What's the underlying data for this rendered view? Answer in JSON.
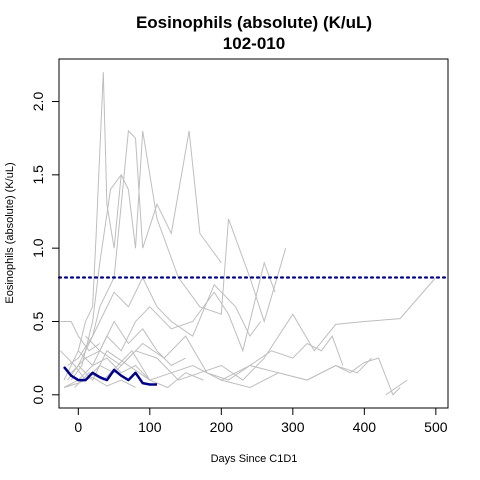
{
  "chart_data": {
    "type": "line",
    "title": "Eosinophils (absolute) (K/uL)",
    "subtitle": "102-010",
    "xlabel": "Days Since C1D1",
    "ylabel": "Eosinophils (absolute) (K/uL)",
    "xlim": [
      -27,
      517
    ],
    "ylim": [
      -0.09,
      2.29
    ],
    "x_ticks": [
      0,
      100,
      200,
      300,
      400,
      500
    ],
    "y_ticks": [
      0.0,
      0.5,
      1.0,
      1.5,
      2.0
    ],
    "x_tick_labels": [
      "0",
      "100",
      "200",
      "300",
      "400",
      "500"
    ],
    "y_tick_labels": [
      "0.0",
      "0.5",
      "1.0",
      "1.5",
      "2.0"
    ],
    "reference_line": {
      "y": 0.8,
      "style": "dotted",
      "color": "#00008b"
    },
    "highlight_color": "#00008b",
    "background_color": "#bebebe",
    "highlight_series": {
      "x": [
        -20,
        -10,
        0,
        10,
        20,
        30,
        40,
        50,
        60,
        70,
        80,
        90,
        100,
        110
      ],
      "y": [
        0.19,
        0.13,
        0.1,
        0.1,
        0.15,
        0.12,
        0.1,
        0.17,
        0.13,
        0.1,
        0.15,
        0.08,
        0.07,
        0.07
      ]
    },
    "background_series": [
      {
        "x": [
          -25,
          -10,
          0,
          15,
          30
        ],
        "y": [
          0.5,
          0.5,
          0.4,
          0.3,
          0.35
        ]
      },
      {
        "x": [
          -20,
          0,
          10,
          20,
          25,
          35,
          40,
          50,
          60
        ],
        "y": [
          0.1,
          0.3,
          0.5,
          0.6,
          1.1,
          2.2,
          1.3,
          1.0,
          1.5
        ]
      },
      {
        "x": [
          -15,
          0,
          20,
          30,
          50,
          70,
          80,
          90,
          110,
          130,
          155,
          170,
          200
        ],
        "y": [
          0.2,
          0.25,
          0.4,
          0.6,
          0.8,
          1.8,
          1.75,
          1.0,
          1.3,
          1.1,
          1.8,
          1.1,
          0.9
        ]
      },
      {
        "x": [
          -10,
          5,
          20,
          30,
          45,
          60,
          70,
          80,
          90,
          110,
          140,
          170,
          200,
          210,
          240,
          260,
          290
        ],
        "y": [
          0.1,
          0.2,
          0.5,
          0.9,
          1.4,
          1.5,
          1.4,
          1.0,
          1.8,
          1.2,
          0.8,
          0.6,
          0.55,
          1.2,
          0.8,
          0.5,
          1.0
        ]
      },
      {
        "x": [
          -15,
          0,
          15,
          30,
          50,
          70,
          90,
          110,
          130,
          160,
          190,
          220,
          240,
          255
        ],
        "y": [
          0.1,
          0.2,
          0.35,
          0.5,
          0.7,
          0.6,
          0.8,
          0.6,
          0.5,
          0.4,
          0.75,
          0.6,
          0.4,
          0.5
        ]
      },
      {
        "x": [
          -20,
          0,
          20,
          40,
          60,
          80,
          100,
          130,
          160,
          190,
          210,
          230,
          260,
          275
        ],
        "y": [
          0.05,
          0.1,
          0.2,
          0.4,
          0.3,
          0.5,
          0.6,
          0.45,
          0.5,
          0.7,
          0.55,
          0.3,
          0.9,
          0.7
        ]
      },
      {
        "x": [
          -25,
          -5,
          10,
          30,
          50,
          80,
          110,
          140,
          170,
          200,
          230,
          260,
          300,
          330,
          360,
          400,
          450,
          500
        ],
        "y": [
          0.3,
          0.2,
          0.1,
          0.2,
          0.15,
          0.3,
          0.25,
          0.1,
          0.15,
          0.2,
          0.1,
          0.25,
          0.55,
          0.3,
          0.48,
          0.5,
          0.52,
          0.8
        ]
      },
      {
        "x": [
          -10,
          10,
          30,
          60,
          90,
          120,
          150,
          180,
          210,
          240,
          270,
          300,
          320,
          340,
          355,
          370
        ],
        "y": [
          0.15,
          0.25,
          0.3,
          0.2,
          0.35,
          0.25,
          0.4,
          0.15,
          0.1,
          0.2,
          0.3,
          0.25,
          0.35,
          0.3,
          0.4,
          0.2
        ]
      },
      {
        "x": [
          0,
          20,
          40,
          70,
          100,
          130,
          160,
          200,
          240,
          280,
          320,
          360,
          390,
          410
        ],
        "y": [
          0.2,
          0.1,
          0.3,
          0.2,
          0.1,
          0.15,
          0.2,
          0.1,
          0.05,
          0.15,
          0.1,
          0.2,
          0.15,
          0.25
        ]
      },
      {
        "x": [
          -5,
          15,
          35,
          55,
          75,
          100,
          125,
          150,
          175
        ],
        "y": [
          0.05,
          0.15,
          0.1,
          0.2,
          0.3,
          0.1,
          0.05,
          0.15,
          0.1
        ]
      },
      {
        "x": [
          10,
          30,
          50,
          70,
          90,
          110,
          130,
          150
        ],
        "y": [
          0.4,
          0.3,
          0.5,
          0.35,
          0.45,
          0.3,
          0.2,
          0.25
        ]
      },
      {
        "x": [
          200,
          240,
          280,
          320,
          360,
          380,
          400,
          420,
          440,
          450
        ],
        "y": [
          0.1,
          0.2,
          0.15,
          0.1,
          0.2,
          0.15,
          0.22,
          0.25,
          0.0,
          0.05
        ]
      },
      {
        "x": [
          -20,
          0,
          20,
          40,
          60,
          80
        ],
        "y": [
          0.05,
          0.08,
          0.12,
          0.06,
          0.1,
          0.05
        ]
      },
      {
        "x": [
          0,
          20,
          40,
          60,
          80,
          100
        ],
        "y": [
          0.3,
          0.2,
          0.25,
          0.15,
          0.2,
          0.1
        ]
      },
      {
        "x": [
          430,
          445,
          460
        ],
        "y": [
          0.0,
          0.05,
          0.1
        ]
      }
    ]
  }
}
